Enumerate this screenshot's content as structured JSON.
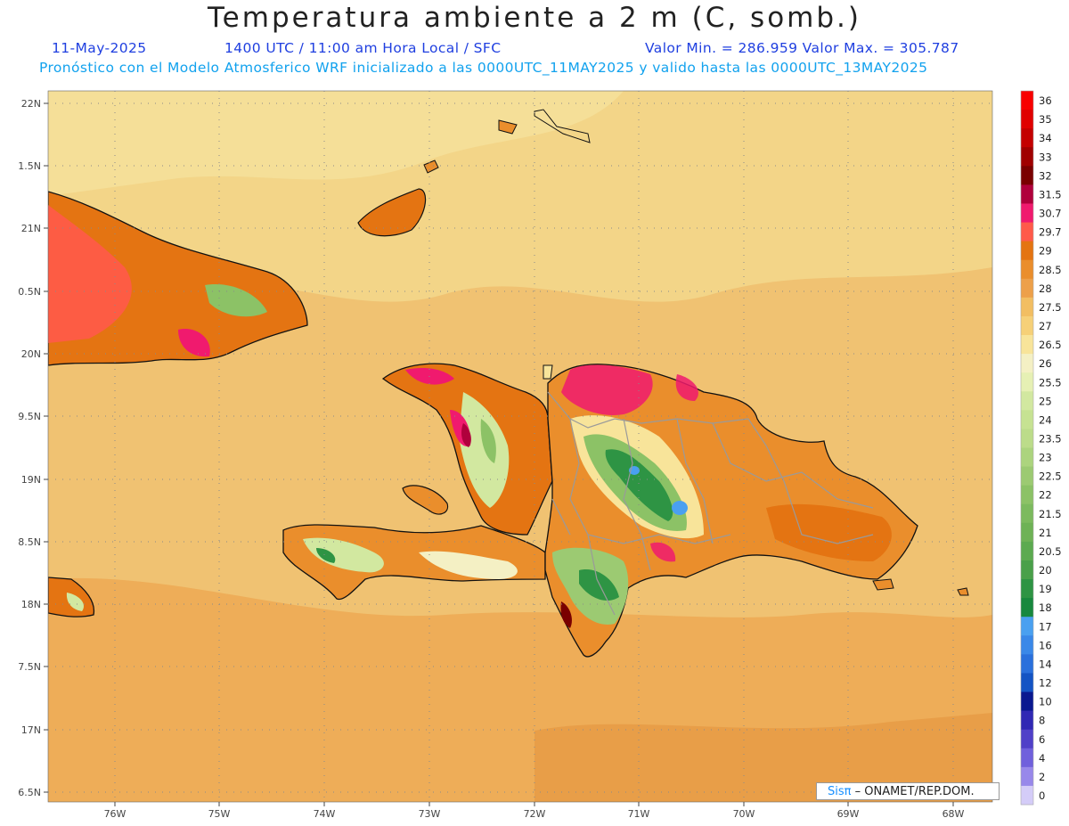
{
  "header": {
    "title": "Temperatura ambiente a 2 m (C, somb.)",
    "date": "11-May-2025",
    "time": "1400 UTC / 11:00 am Hora Local / SFC",
    "minmax": "Valor Min. = 286.959  Valor Max. = 305.787",
    "model_line": "Pronóstico con el Modelo Atmosferico WRF inicializado a las 0000UTC_11MAY2025 y valido hasta las  0000UTC_13MAY2025"
  },
  "axes": {
    "lat_labels": [
      "22N",
      "1.5N",
      "21N",
      "0.5N",
      "20N",
      "9.5N",
      "19N",
      "8.5N",
      "18N",
      "7.5N",
      "17N",
      "6.5N"
    ],
    "lon_labels": [
      "76W",
      "75W",
      "74W",
      "73W",
      "72W",
      "71W",
      "70W",
      "69W",
      "68W"
    ]
  },
  "colorbar": {
    "labels": [
      "36",
      "35",
      "34",
      "33",
      "32",
      "31.5",
      "30.7",
      "29.7",
      "29",
      "28.5",
      "28",
      "27.5",
      "27",
      "26.5",
      "26",
      "25.5",
      "25",
      "24",
      "23.5",
      "23",
      "22.5",
      "22",
      "21.5",
      "21",
      "20.5",
      "20",
      "19",
      "18",
      "17",
      "16",
      "14",
      "12",
      "10",
      "8",
      "6",
      "4",
      "2",
      "0"
    ],
    "colors": [
      "#f80000",
      "#e00000",
      "#c40000",
      "#a00000",
      "#7a0000",
      "#b0003c",
      "#f01a6e",
      "#ff5a4a",
      "#e47412",
      "#ea8e2c",
      "#eda04a",
      "#f2be62",
      "#f6d078",
      "#f8e49a",
      "#f4f0c4",
      "#e6f0b4",
      "#d2e8a0",
      "#c6e292",
      "#bcdc8a",
      "#acd47e",
      "#9cca72",
      "#8cc266",
      "#7cba5e",
      "#6eb256",
      "#5caa50",
      "#4aa04a",
      "#2e9444",
      "#18883e",
      "#4aa0f0",
      "#3a88e8",
      "#2a70dc",
      "#1454c4",
      "#0a1890",
      "#3028b4",
      "#5040c8",
      "#7060dc",
      "#9888ea",
      "#d4ccf8"
    ]
  },
  "credit": {
    "brand": "Sisπ",
    "text": "– ONAMET/REP.DOM."
  }
}
